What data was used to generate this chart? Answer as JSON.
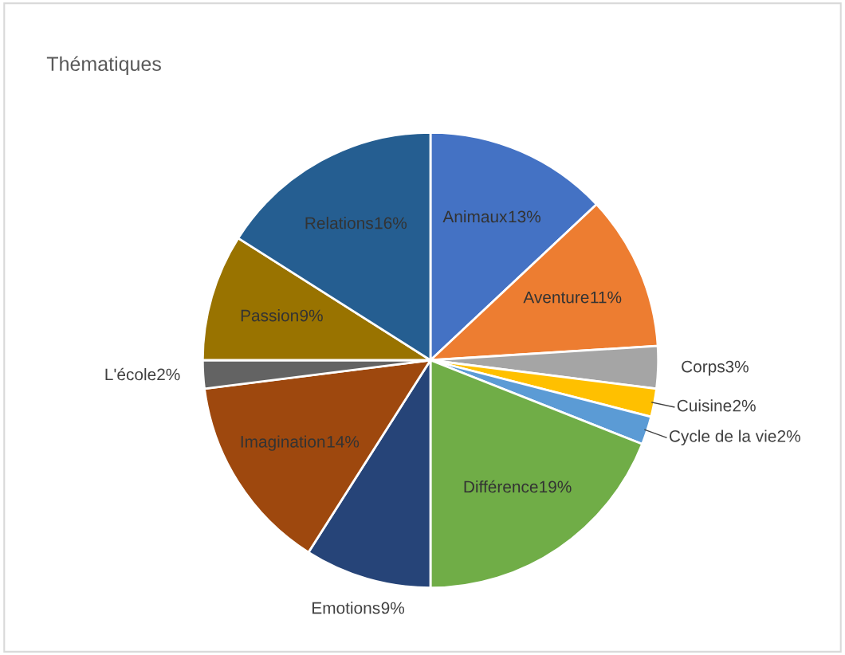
{
  "chart_data": {
    "type": "pie",
    "title": "Thématiques",
    "categories": [
      "Animaux",
      "Aventure",
      "Corps",
      "Cuisine",
      "Cycle de la vie",
      "Différence",
      "Emotions",
      "Imagination",
      "L'école",
      "Passion",
      "Relations"
    ],
    "values": [
      13,
      11,
      3,
      2,
      2,
      19,
      9,
      14,
      2,
      9,
      16
    ],
    "colors": [
      "#4472c4",
      "#ed7d31",
      "#a5a5a5",
      "#ffc000",
      "#5b9bd5",
      "#70ad47",
      "#264478",
      "#9e480e",
      "#636363",
      "#997300",
      "#255e91"
    ],
    "value_labels": [
      "13%",
      "11%",
      "3%",
      "2%",
      "2%",
      "19%",
      "9%",
      "14%",
      "2%",
      "9%",
      "16%"
    ],
    "legend": false
  }
}
